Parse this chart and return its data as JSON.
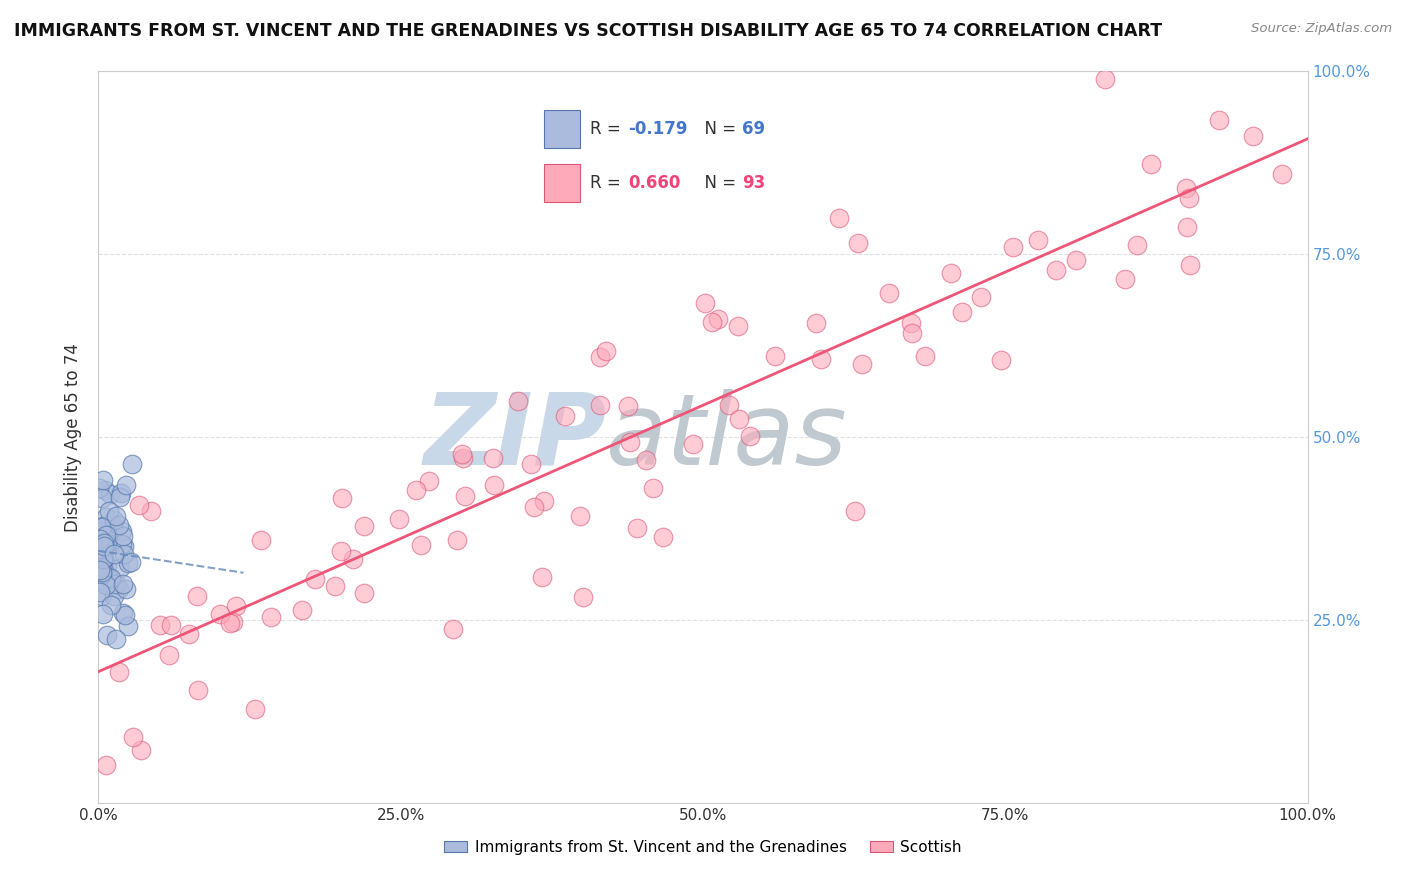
{
  "title": "IMMIGRANTS FROM ST. VINCENT AND THE GRENADINES VS SCOTTISH DISABILITY AGE 65 TO 74 CORRELATION CHART",
  "source": "Source: ZipAtlas.com",
  "xlabel_blue": "Immigrants from St. Vincent and the Grenadines",
  "xlabel_pink": "Scottish",
  "ylabel": "Disability Age 65 to 74",
  "R_blue": -0.179,
  "N_blue": 69,
  "R_pink": 0.66,
  "N_pink": 93,
  "xlim": [
    0.0,
    1.0
  ],
  "ylim": [
    0.0,
    1.0
  ],
  "xticks": [
    0.0,
    0.25,
    0.5,
    0.75,
    1.0
  ],
  "yticks": [
    0.0,
    0.25,
    0.5,
    0.75,
    1.0
  ],
  "xticklabels": [
    "0.0%",
    "25.0%",
    "50.0%",
    "75.0%",
    "100.0%"
  ],
  "left_yticklabels": [
    "",
    "",
    "",
    "",
    ""
  ],
  "right_yticklabels": [
    "",
    "25.0%",
    "50.0%",
    "75.0%",
    "100.0%"
  ],
  "background_color": "#ffffff",
  "plot_background": "#ffffff",
  "blue_color": "#aabbdd",
  "pink_color": "#ffaabb",
  "blue_edge_color": "#5577aa",
  "pink_edge_color": "#dd5577",
  "blue_line_color": "#6688bb",
  "pink_line_color": "#ee5577",
  "watermark_zip_color": "#c8d8e8",
  "watermark_atlas_color": "#c0c8d0",
  "grid_color": "#e0e0e0"
}
